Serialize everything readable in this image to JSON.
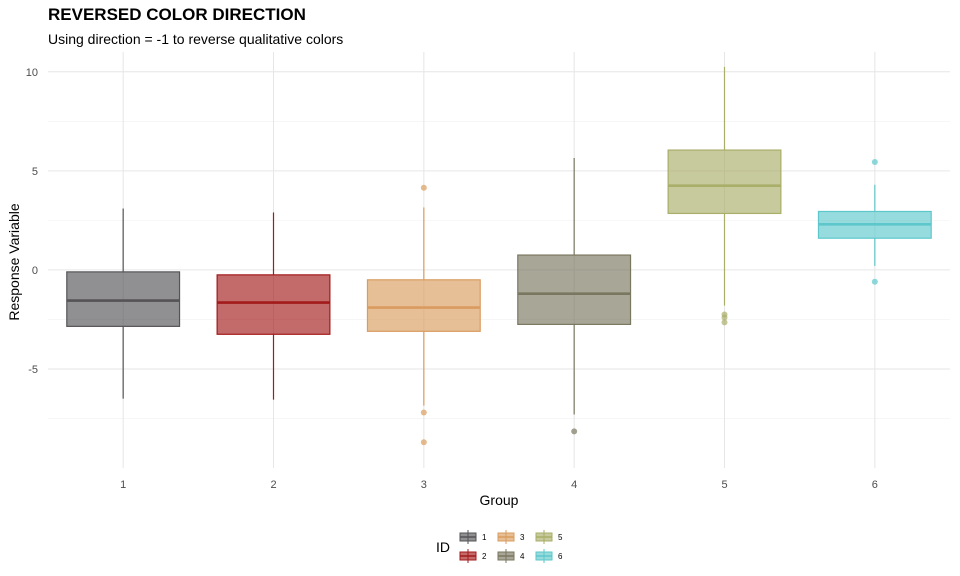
{
  "chart_data": {
    "type": "box",
    "title": "REVERSED COLOR DIRECTION",
    "subtitle": "Using direction = -1 to reverse qualitative colors",
    "xlabel": "Group",
    "ylabel": "Response Variable",
    "categories": [
      "1",
      "2",
      "3",
      "4",
      "5",
      "6"
    ],
    "ylim": [
      -10,
      11
    ],
    "yticks": [
      -5,
      0,
      5,
      10
    ],
    "grid": true,
    "legend": {
      "title": "ID",
      "position": "bottom",
      "labels": [
        "1",
        "2",
        "3",
        "4",
        "5",
        "6"
      ]
    },
    "colors": [
      "#555356",
      "#A31A1B",
      "#D99C5E",
      "#7A7760",
      "#A9AE69",
      "#5EC7CB"
    ],
    "boxes": [
      {
        "group": "1",
        "min": -6.5,
        "q1": -2.85,
        "median": -1.55,
        "q3": -0.1,
        "max": 3.1,
        "outliers": []
      },
      {
        "group": "2",
        "min": -6.55,
        "q1": -3.25,
        "median": -1.65,
        "q3": -0.25,
        "max": 2.9,
        "outliers": []
      },
      {
        "group": "3",
        "min": -6.85,
        "q1": -3.1,
        "median": -1.9,
        "q3": -0.5,
        "max": 3.15,
        "outliers": [
          4.15,
          -7.2,
          -8.7
        ]
      },
      {
        "group": "4",
        "min": -7.3,
        "q1": -2.75,
        "median": -1.2,
        "q3": 0.75,
        "max": 5.65,
        "outliers": [
          -8.15
        ]
      },
      {
        "group": "5",
        "min": -1.8,
        "q1": 2.85,
        "median": 4.25,
        "q3": 6.05,
        "max": 10.25,
        "outliers": [
          -2.25,
          -2.4,
          -2.65
        ]
      },
      {
        "group": "6",
        "min": 0.2,
        "q1": 1.6,
        "median": 2.3,
        "q3": 2.95,
        "max": 4.3,
        "outliers": [
          5.45,
          -0.6
        ]
      }
    ]
  }
}
